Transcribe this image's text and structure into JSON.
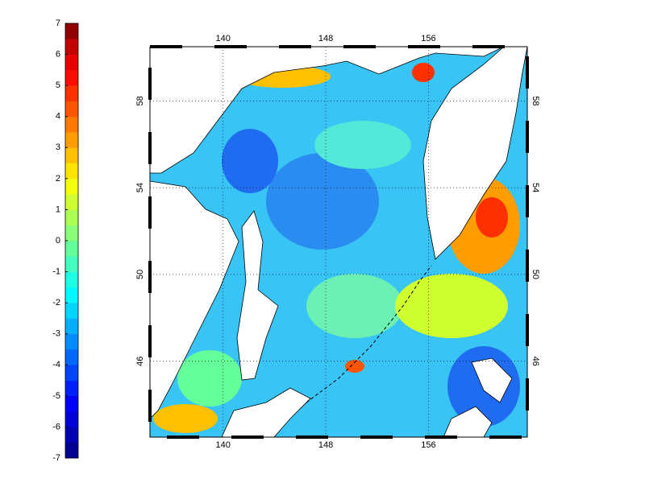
{
  "colorbar": {
    "lim": [
      -7,
      7
    ],
    "ticks": [
      -7,
      -6,
      -5,
      -4,
      -3,
      -2,
      -1,
      0,
      1,
      2,
      3,
      4,
      5,
      6,
      7
    ],
    "colors": [
      "#000090",
      "#0000b4",
      "#0000d8",
      "#0000fc",
      "#0020ff",
      "#0044ff",
      "#0068ff",
      "#008cff",
      "#00b0ff",
      "#00d4ff",
      "#00f8ff",
      "#1cffe3",
      "#40ffbf",
      "#64ff9b",
      "#88ff77",
      "#acff53",
      "#d0ff2f",
      "#f4ff0b",
      "#ffe400",
      "#ffc000",
      "#ff9c00",
      "#ff7800",
      "#ff5400",
      "#ff3000",
      "#ff0c00",
      "#e80000",
      "#c40000",
      "#900000"
    ]
  },
  "map": {
    "lon_lim": [
      134.3,
      163.7
    ],
    "lat_lim": [
      42.5,
      60.5
    ],
    "lon_ticks": [
      140,
      148,
      156
    ],
    "lat_ticks": [
      46,
      50,
      54,
      58
    ],
    "grid": true
  }
}
